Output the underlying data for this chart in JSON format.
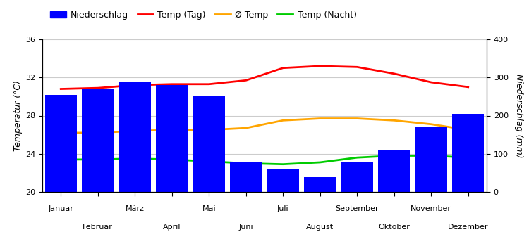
{
  "months": [
    "Januar",
    "Februar",
    "März",
    "April",
    "Mai",
    "Juni",
    "Juli",
    "August",
    "September",
    "Oktober",
    "November",
    "Dezember"
  ],
  "precipitation_mm": [
    255,
    270,
    290,
    280,
    250,
    80,
    60,
    38,
    80,
    108,
    170,
    205
  ],
  "temp_day": [
    30.8,
    30.9,
    31.2,
    31.3,
    31.3,
    31.7,
    33.0,
    33.2,
    33.1,
    32.4,
    31.5,
    31.0
  ],
  "temp_avg": [
    26.2,
    26.2,
    26.4,
    26.5,
    26.5,
    26.7,
    27.5,
    27.7,
    27.7,
    27.5,
    27.1,
    26.5
  ],
  "temp_night": [
    23.4,
    23.4,
    23.5,
    23.4,
    23.2,
    23.0,
    22.9,
    23.1,
    23.6,
    23.8,
    23.8,
    23.6
  ],
  "bar_color": "#0000FF",
  "line_color_day": "#FF0000",
  "line_color_avg": "#FFA500",
  "line_color_night": "#00CC00",
  "ylabel_left": "Temperatur (°C)",
  "ylabel_right": "Niederschlag (mm)",
  "ylim_left": [
    20,
    36
  ],
  "ylim_right": [
    0,
    400
  ],
  "yticks_left": [
    20,
    24,
    28,
    32,
    36
  ],
  "yticks_right": [
    0,
    100,
    200,
    300,
    400
  ],
  "legend_labels": [
    "Niederschlag",
    "Temp (Tag)",
    "Ø Temp",
    "Temp (Nacht)"
  ],
  "background_color": "#ffffff",
  "grid_color": "#cccccc"
}
